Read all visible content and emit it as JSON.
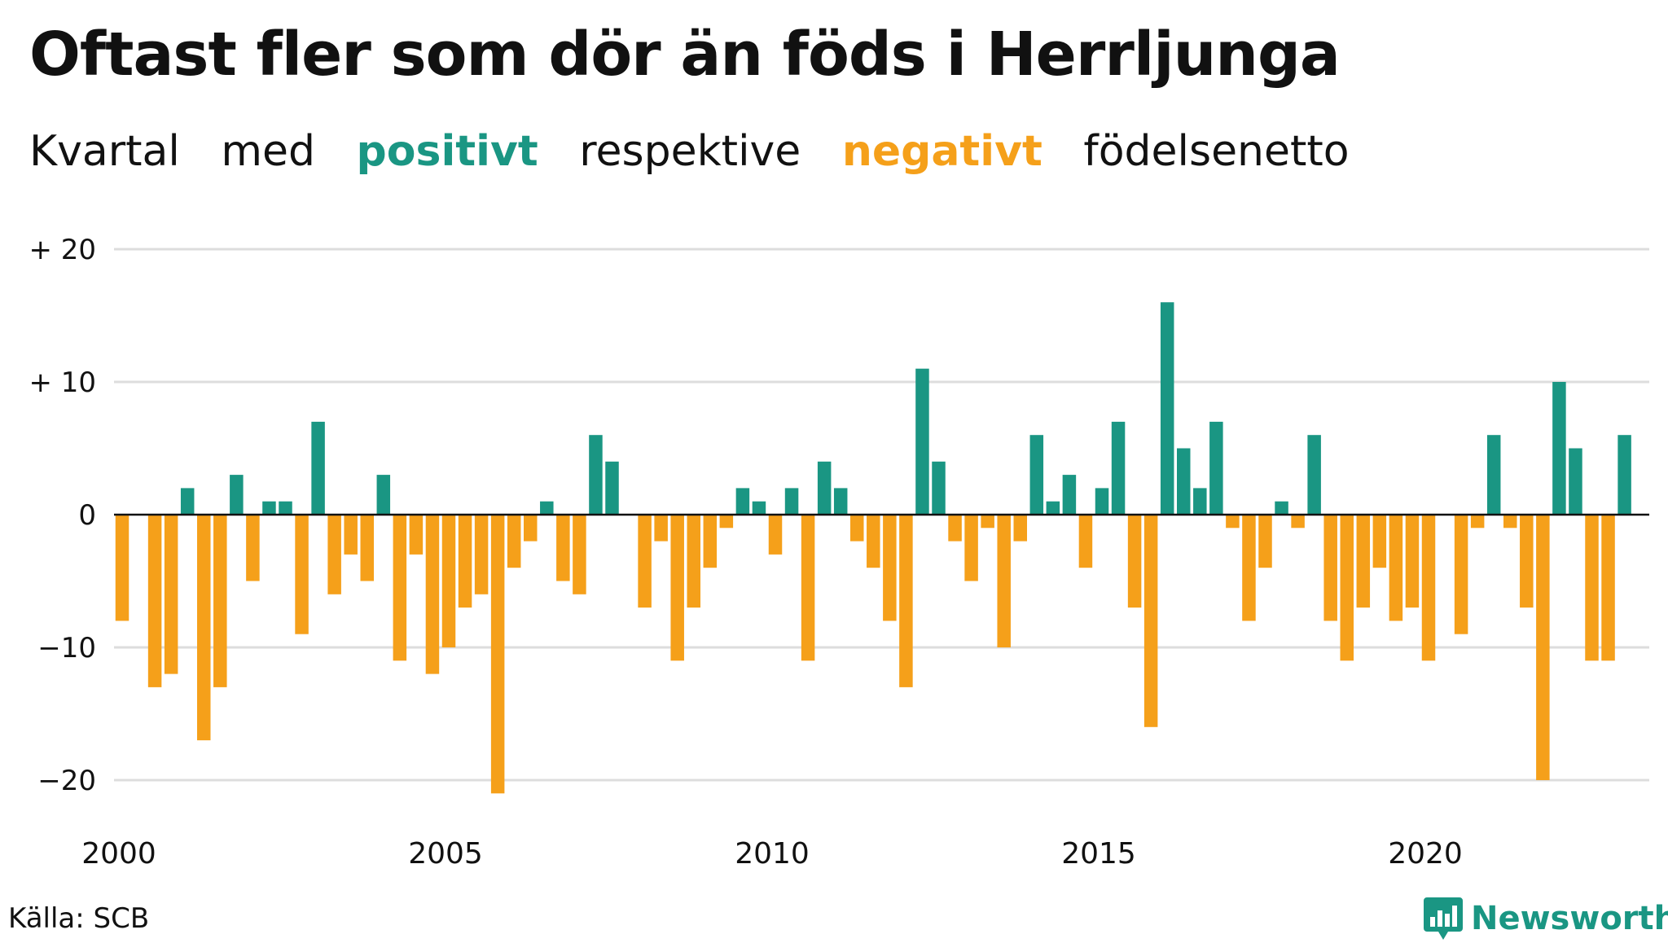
{
  "title": "Oftast fler som dör än föds i Herrljunga",
  "subtitle": {
    "w1": "Kvartal",
    "w2": "med",
    "positive_word": "positivt",
    "w3": "respektive",
    "negative_word": "negativt",
    "w4": "födelsenetto"
  },
  "source": "Källa: SCB",
  "brand": {
    "name": "Newsworthy",
    "icon": "newsworthy-logo-icon"
  },
  "colors": {
    "positive": "#1a9683",
    "negative": "#f5a01a",
    "grid": "#dddddd",
    "zero": "#111111"
  },
  "chart_data": {
    "type": "bar",
    "title": "Oftast fler som dör än föds i Herrljunga",
    "xlabel": "",
    "ylabel": "",
    "grid": true,
    "start_year": 2000,
    "quarters_per_year": 4,
    "ylim": [
      -22,
      21
    ],
    "yticks": [
      {
        "value": 20,
        "label": "+ 20"
      },
      {
        "value": 10,
        "label": "+ 10"
      },
      {
        "value": 0,
        "label": "0"
      },
      {
        "value": -10,
        "label": "−10"
      },
      {
        "value": -20,
        "label": "−20"
      }
    ],
    "xticks": [
      "2000",
      "2005",
      "2010",
      "2015",
      "2020"
    ],
    "values": [
      -8,
      0,
      -13,
      -12,
      2,
      -17,
      -13,
      3,
      -5,
      1,
      1,
      -9,
      7,
      -6,
      -3,
      -5,
      3,
      -11,
      -3,
      -12,
      -10,
      -7,
      -6,
      -21,
      -4,
      -2,
      1,
      -5,
      -6,
      6,
      4,
      0,
      -7,
      -2,
      -11,
      -7,
      -4,
      -1,
      2,
      1,
      -3,
      2,
      -11,
      4,
      2,
      -2,
      -4,
      -8,
      -13,
      11,
      4,
      -2,
      -5,
      -1,
      -10,
      -2,
      6,
      1,
      3,
      -4,
      2,
      7,
      -7,
      -16,
      16,
      5,
      2,
      7,
      -1,
      -8,
      -4,
      1,
      -1,
      6,
      -8,
      -11,
      -7,
      -4,
      -8,
      -7,
      -11,
      0,
      -9,
      -1,
      6,
      -1,
      -7,
      -20,
      10,
      5,
      -11,
      -11,
      6
    ]
  }
}
